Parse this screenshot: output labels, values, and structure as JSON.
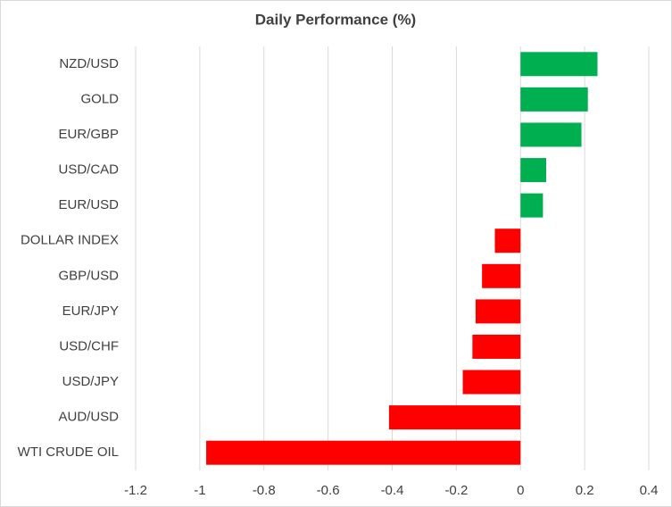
{
  "chart_data": {
    "type": "barh",
    "title": "Daily Performance (%)",
    "categories": [
      "NZD/USD",
      "GOLD",
      "EUR/GBP",
      "USD/CAD",
      "EUR/USD",
      "DOLLAR INDEX",
      "GBP/USD",
      "EUR/JPY",
      "USD/CHF",
      "USD/JPY",
      "AUD/USD",
      "WTI CRUDE OIL"
    ],
    "values": [
      0.24,
      0.21,
      0.19,
      0.08,
      0.07,
      -0.08,
      -0.12,
      -0.14,
      -0.15,
      -0.18,
      -0.41,
      -0.98
    ],
    "positive_color": "#00b050",
    "negative_color": "#ff0000",
    "xlim": [
      -1.2,
      0.4
    ],
    "xticks": [
      -1.2,
      -1,
      -0.8,
      -0.6,
      -0.4,
      -0.2,
      0,
      0.2,
      0.4
    ],
    "grid": true
  }
}
